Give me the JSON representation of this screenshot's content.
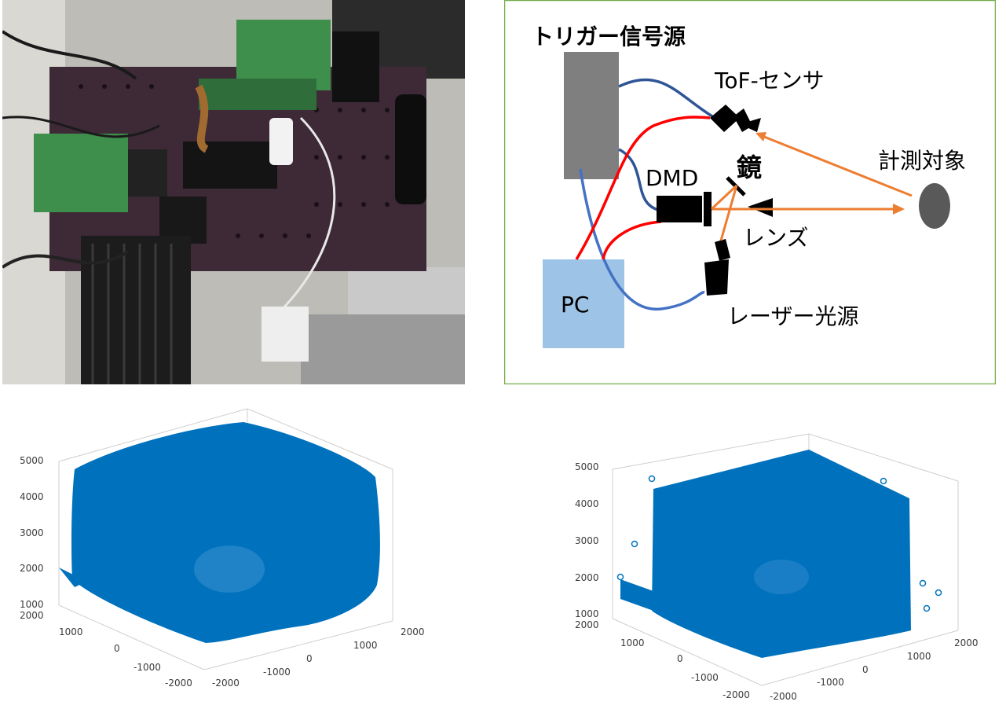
{
  "diagram": {
    "labels": {
      "trigger": "トリガー信号源",
      "tof": "ToF-センサ",
      "dmd": "DMD",
      "mirror": "鏡",
      "target": "計測対象",
      "lens": "レンズ",
      "pc": "PC",
      "laser": "レーザー光源"
    },
    "colors": {
      "trigger_box": "#7f7f7f",
      "pc_box": "#9dc3e6",
      "border": "#70ad47",
      "red_wire": "#ff0000",
      "blue_wire": "#4472c4",
      "navy_wire": "#2f5597",
      "light_ray": "#ed7d31",
      "target": "#595959"
    }
  },
  "scatter_left": {
    "z_ticks": [
      "5000",
      "4000",
      "3000",
      "2000",
      "1000"
    ],
    "y_ticks": [
      "2000",
      "1000",
      "0",
      "-1000",
      "-2000"
    ],
    "x_ticks": [
      "-2000",
      "-1000",
      "0",
      "1000",
      "2000"
    ],
    "marker_color": "#0072bd"
  },
  "scatter_right": {
    "z_ticks": [
      "5000",
      "4000",
      "3000",
      "2000",
      "1000"
    ],
    "y_ticks": [
      "2000",
      "1000",
      "0",
      "-1000",
      "-2000"
    ],
    "x_ticks": [
      "-2000",
      "-1000",
      "0",
      "1000",
      "2000"
    ],
    "marker_color": "#0072bd"
  }
}
